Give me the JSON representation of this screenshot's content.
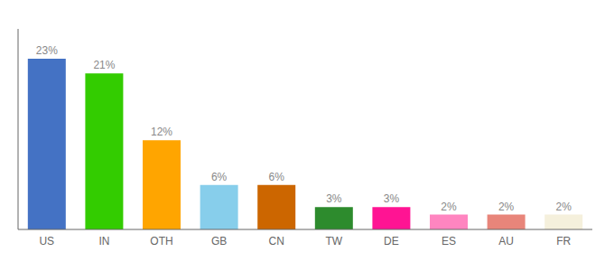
{
  "chart_data": {
    "type": "bar",
    "categories": [
      "US",
      "IN",
      "OTH",
      "GB",
      "CN",
      "TW",
      "DE",
      "ES",
      "AU",
      "FR"
    ],
    "values": [
      23,
      21,
      12,
      6,
      6,
      3,
      3,
      2,
      2,
      2
    ],
    "value_labels": [
      "23%",
      "21%",
      "12%",
      "6%",
      "6%",
      "3%",
      "3%",
      "2%",
      "2%",
      "2%"
    ],
    "colors": [
      "#4472C4",
      "#33CC00",
      "#FFA500",
      "#87CEEB",
      "#CC6600",
      "#2D8B2D",
      "#FF1493",
      "#FF85C0",
      "#E8857A",
      "#F5F0DC"
    ],
    "ylim": [
      0,
      27
    ],
    "data_labels": true,
    "tick_labels": "x",
    "grid": false
  }
}
